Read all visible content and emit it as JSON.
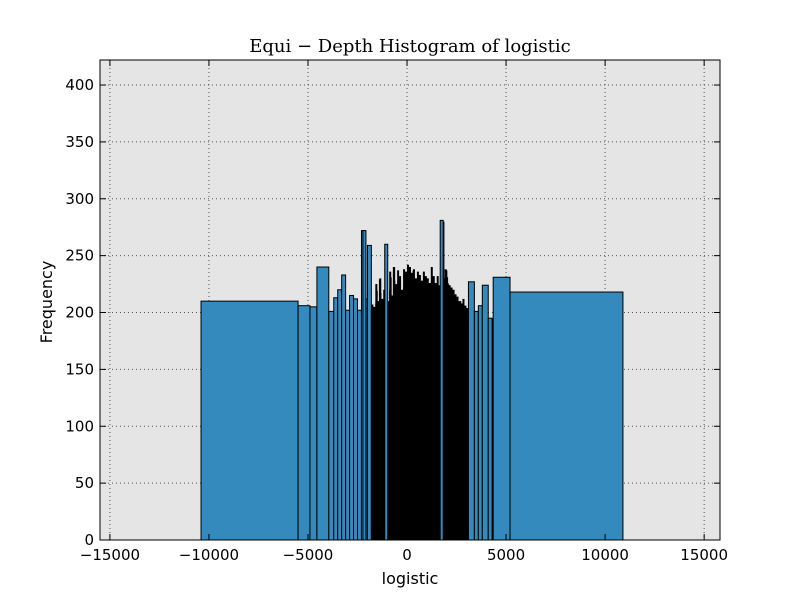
{
  "chart_data": {
    "type": "bar",
    "title": "Equi − Depth Histogram of logistic",
    "xlabel": "logistic",
    "ylabel": "Frequency",
    "xlim": [
      -15500,
      15800
    ],
    "ylim": [
      0,
      422
    ],
    "xticks": [
      -15000,
      -10000,
      -5000,
      0,
      5000,
      10000,
      15000
    ],
    "xtick_labels": [
      "−15000",
      "−10000",
      "−5000",
      "0",
      "5000",
      "10000",
      "15000"
    ],
    "yticks": [
      0,
      50,
      100,
      150,
      200,
      250,
      300,
      350,
      400
    ],
    "ytick_labels": [
      "0",
      "50",
      "100",
      "150",
      "200",
      "250",
      "300",
      "350",
      "400"
    ],
    "grid": true,
    "colors": {
      "bar": "#348abd",
      "edge": "#000000",
      "plot_bg": "#e5e5e5"
    },
    "bins": [
      {
        "x0": -10400,
        "x1": -5500,
        "value": 210
      },
      {
        "x0": -5500,
        "x1": -4900,
        "value": 206
      },
      {
        "x0": -4900,
        "x1": -4550,
        "value": 205
      },
      {
        "x0": -4550,
        "x1": -3950,
        "value": 240
      },
      {
        "x0": -3950,
        "x1": -3700,
        "value": 201
      },
      {
        "x0": -3700,
        "x1": -3500,
        "value": 213
      },
      {
        "x0": -3500,
        "x1": -3300,
        "value": 220
      },
      {
        "x0": -3300,
        "x1": -3100,
        "value": 233
      },
      {
        "x0": -3100,
        "x1": -2900,
        "value": 202
      },
      {
        "x0": -2900,
        "x1": -2700,
        "value": 215
      },
      {
        "x0": -2700,
        "x1": -2500,
        "value": 212
      },
      {
        "x0": -2500,
        "x1": -2300,
        "value": 202
      },
      {
        "x0": -2300,
        "x1": -2150,
        "value": 272
      },
      {
        "x0": -2150,
        "x1": -2000,
        "value": 212
      },
      {
        "x0": -2000,
        "x1": -1800,
        "value": 259
      },
      {
        "x0": 3100,
        "x1": 3400,
        "value": 227
      },
      {
        "x0": 3400,
        "x1": 3600,
        "value": 201
      },
      {
        "x0": 3600,
        "x1": 3800,
        "value": 206
      },
      {
        "x0": 3800,
        "x1": 4100,
        "value": 224
      },
      {
        "x0": 4100,
        "x1": 4300,
        "value": 195
      },
      {
        "x0": 4300,
        "x1": 4350,
        "value": 194
      },
      {
        "x0": 4350,
        "x1": 5200,
        "value": 231
      },
      {
        "x0": 5200,
        "x1": 10900,
        "value": 218
      }
    ],
    "dense_region": {
      "x0": -1800,
      "x1": 3100,
      "heights": [
        [
          -1800,
          207
        ],
        [
          -1700,
          205
        ],
        [
          -1600,
          225
        ],
        [
          -1500,
          210
        ],
        [
          -1400,
          230
        ],
        [
          -1300,
          212
        ],
        [
          -1200,
          220
        ],
        [
          -1100,
          238
        ],
        [
          -1000,
          210
        ],
        [
          -900,
          236
        ],
        [
          -800,
          215
        ],
        [
          -700,
          240
        ],
        [
          -600,
          225
        ],
        [
          -500,
          237
        ],
        [
          -400,
          232
        ],
        [
          -300,
          220
        ],
        [
          -200,
          238
        ],
        [
          -100,
          236
        ],
        [
          0,
          242
        ],
        [
          100,
          240
        ],
        [
          200,
          235
        ],
        [
          300,
          238
        ],
        [
          400,
          230
        ],
        [
          500,
          236
        ],
        [
          600,
          233
        ],
        [
          700,
          228
        ],
        [
          800,
          236
        ],
        [
          900,
          232
        ],
        [
          1000,
          230
        ],
        [
          1100,
          226
        ],
        [
          1200,
          240
        ],
        [
          1300,
          232
        ],
        [
          1400,
          226
        ],
        [
          1500,
          232
        ],
        [
          1600,
          224
        ],
        [
          1700,
          240
        ],
        [
          1750,
          280
        ],
        [
          1800,
          230
        ],
        [
          1900,
          238
        ],
        [
          2000,
          226
        ],
        [
          2100,
          224
        ],
        [
          2200,
          222
        ],
        [
          2300,
          220
        ],
        [
          2400,
          216
        ],
        [
          2500,
          214
        ],
        [
          2600,
          210
        ],
        [
          2700,
          208
        ],
        [
          2800,
          212
        ],
        [
          2900,
          206
        ],
        [
          3000,
          204
        ],
        [
          3100,
          205
        ]
      ],
      "spikes": [
        [
          -1050,
          260
        ],
        [
          1750,
          281
        ],
        [
          -2150,
          272
        ]
      ]
    }
  }
}
